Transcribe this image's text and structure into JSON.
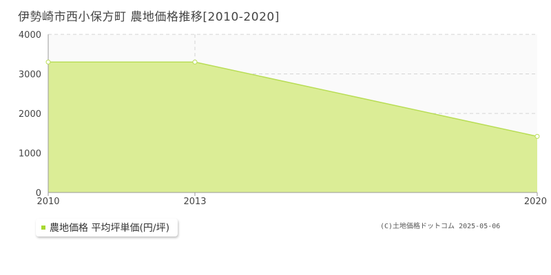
{
  "title": "伊勢崎市西小保方町 農地価格推移[2010-2020]",
  "copyright": "(C)土地価格ドットコム 2025-05-06",
  "colors": {
    "area_fill": "#dbed96",
    "line": "#b8dd55",
    "point_fill": "#ffffff",
    "marker": "#a8d832",
    "grid": "#d4d4d4",
    "axis": "#999999"
  },
  "chart_data": {
    "type": "area",
    "x": [
      2010,
      2013,
      2020
    ],
    "series": [
      {
        "name": "農地価格 平均坪単価(円/坪)",
        "values": [
          3300,
          3300,
          1420
        ]
      }
    ],
    "xticks": [
      "2010",
      "2013",
      "2020"
    ],
    "yticks": [
      "0",
      "1000",
      "2000",
      "3000",
      "4000"
    ],
    "xlim": [
      2010,
      2020
    ],
    "ylim": [
      0,
      4000
    ],
    "grid": true,
    "legend_position": "bottom-left"
  }
}
